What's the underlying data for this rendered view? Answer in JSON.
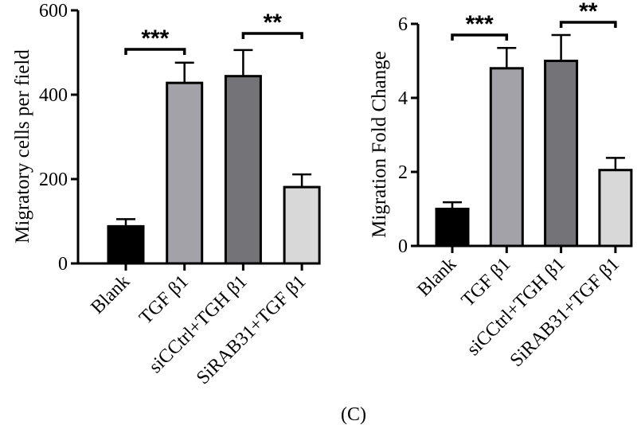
{
  "panel_label": "(C)",
  "chart_data": [
    {
      "type": "bar",
      "title": "",
      "xlabel": "",
      "ylabel": "Migratory cells per field",
      "ylim": [
        0,
        600
      ],
      "yticks": [
        "0",
        "200",
        "400",
        "600"
      ],
      "categories": [
        "Blank",
        "TGF β1",
        "siCCtrl+TGH β1",
        "SiRAB31+TGF β1"
      ],
      "values": [
        88,
        428,
        444,
        181
      ],
      "errors": [
        17,
        48,
        62,
        30
      ],
      "bar_colors": [
        "#000000",
        "#a2a2a8",
        "#747478",
        "#d8d8d8"
      ],
      "significance": [
        {
          "from": 0,
          "to": 1,
          "label": "***"
        },
        {
          "from": 2,
          "to": 3,
          "label": "**"
        }
      ]
    },
    {
      "type": "bar",
      "title": "",
      "xlabel": "",
      "ylabel": "Migration Fold Change",
      "ylim": [
        0,
        6
      ],
      "yticks": [
        "0",
        "2",
        "4",
        "6"
      ],
      "categories": [
        "Blank",
        "TGF β1",
        "siCCtrl+TGH β1",
        "SiRAB31+TGF β1"
      ],
      "values": [
        1.0,
        4.8,
        5.0,
        2.05
      ],
      "errors": [
        0.18,
        0.55,
        0.7,
        0.33
      ],
      "bar_colors": [
        "#000000",
        "#a2a2a8",
        "#747478",
        "#d8d8d8"
      ],
      "significance": [
        {
          "from": 0,
          "to": 1,
          "label": "***"
        },
        {
          "from": 2,
          "to": 3,
          "label": "**"
        }
      ]
    }
  ]
}
